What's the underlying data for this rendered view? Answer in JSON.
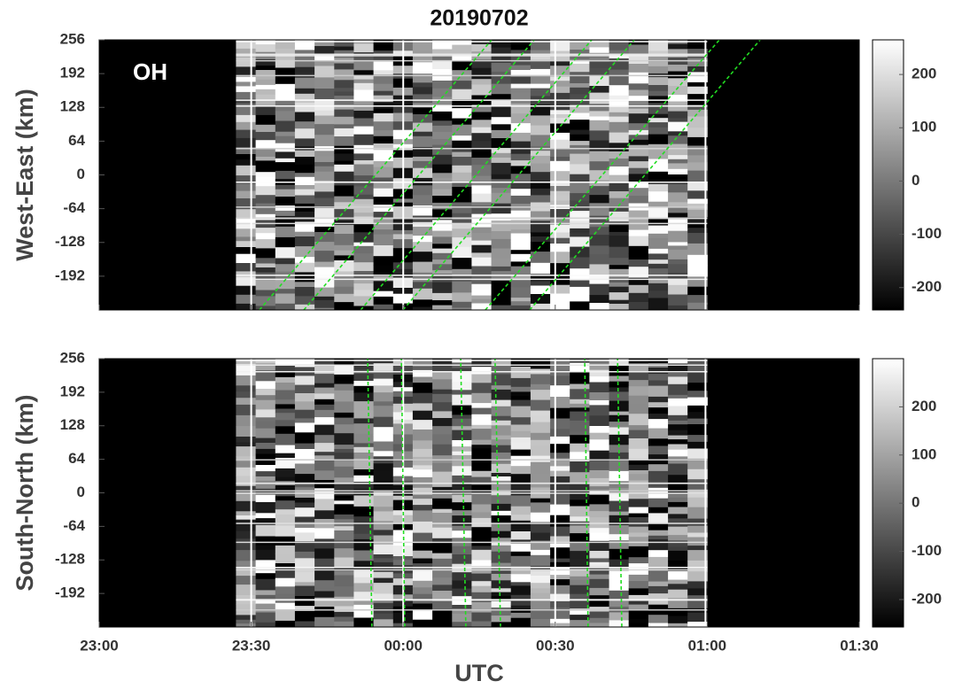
{
  "chart_data": {
    "type": "keogram",
    "title": "20190702",
    "x_label": "UTC",
    "xlim": [
      23,
      25.5
    ],
    "xticks": [
      {
        "value": 23,
        "label": "23:00"
      },
      {
        "value": 23.5,
        "label": "23:30"
      },
      {
        "value": 24,
        "label": "00:00"
      },
      {
        "value": 24.5,
        "label": "00:30"
      },
      {
        "value": 25,
        "label": "01:00"
      },
      {
        "value": 25.5,
        "label": "01:30"
      }
    ],
    "panels": [
      {
        "type": "heatmap",
        "annotation": "OH",
        "y_label": "West-East (km)",
        "ylim": [
          -256,
          256
        ],
        "yticks": [
          256,
          192,
          128,
          64,
          0,
          -64,
          -128,
          -192
        ],
        "data_window": [
          23.45,
          25.0
        ],
        "colormap": [
          "#000000",
          "#ffffff"
        ],
        "clim": [
          -242,
          265
        ],
        "cticks": [
          200,
          100,
          0,
          -100,
          -200
        ],
        "line_color": "#22dd22",
        "phase_lines": [
          {
            "x": [
              23.527,
              24.291
            ],
            "y": [
              -256,
              256
            ]
          },
          {
            "x": [
              23.673,
              24.431
            ],
            "y": [
              -256,
              256
            ]
          },
          {
            "x": [
              23.86,
              24.62
            ],
            "y": [
              -256,
              256
            ]
          },
          {
            "x": [
              23.999,
              24.76
            ],
            "y": [
              -256,
              256
            ]
          },
          {
            "x": [
              24.27,
              25.04
            ],
            "y": [
              -256,
              256
            ]
          },
          {
            "x": [
              24.416,
              25.174
            ],
            "y": [
              -256,
              256
            ]
          }
        ]
      },
      {
        "type": "heatmap",
        "y_label": "South-North (km)",
        "ylim": [
          -256,
          256
        ],
        "yticks": [
          256,
          192,
          128,
          64,
          0,
          -64,
          -128,
          -192
        ],
        "data_window": [
          23.45,
          25.0
        ],
        "colormap": [
          "#000000",
          "#ffffff"
        ],
        "clim": [
          -257,
          300
        ],
        "cticks": [
          200,
          100,
          0,
          -100,
          -200
        ],
        "line_color": "#22dd22",
        "phase_lines": [
          {
            "x": [
              23.897,
              23.883
            ],
            "y": [
              -256,
              256
            ]
          },
          {
            "x": [
              24.005,
              23.994
            ],
            "y": [
              -256,
              256
            ]
          },
          {
            "x": [
              24.206,
              24.189
            ],
            "y": [
              -256,
              256
            ]
          },
          {
            "x": [
              24.32,
              24.302
            ],
            "y": [
              -256,
              256
            ]
          },
          {
            "x": [
              24.608,
              24.597
            ],
            "y": [
              -256,
              256
            ]
          },
          {
            "x": [
              24.719,
              24.705
            ],
            "y": [
              -256,
              256
            ]
          }
        ]
      }
    ]
  }
}
